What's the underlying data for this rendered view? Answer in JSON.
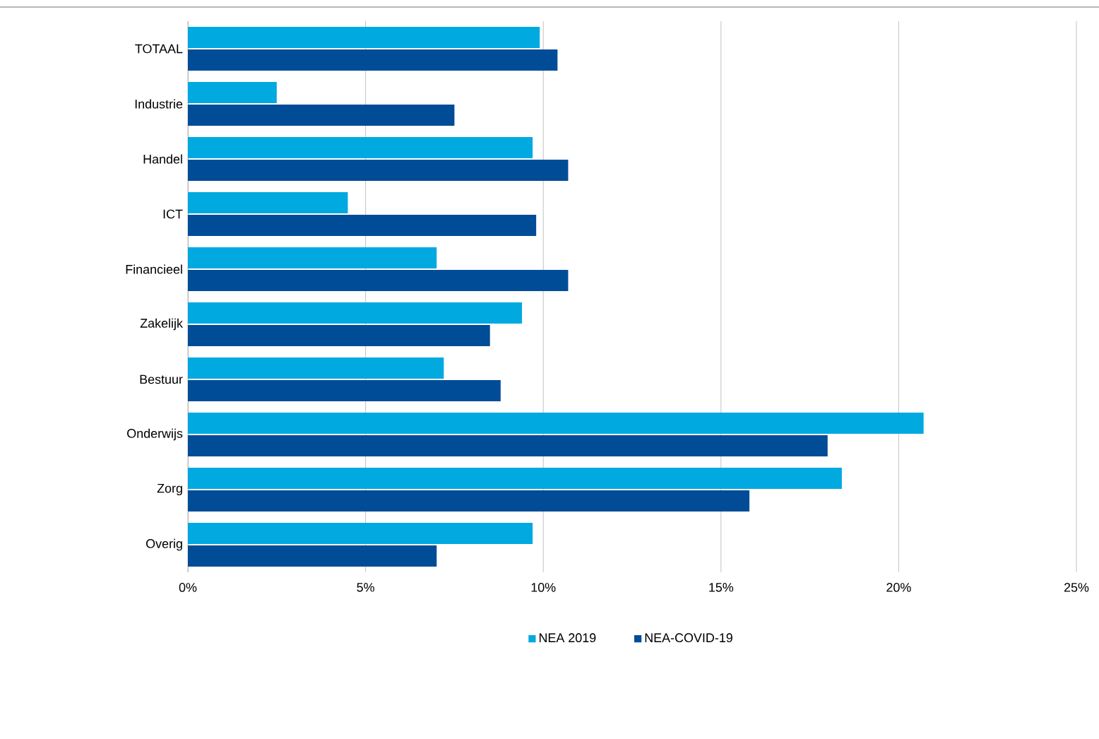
{
  "chart_data": {
    "type": "bar",
    "orientation": "horizontal",
    "categories": [
      "TOTAAL",
      "Industrie",
      "Handel",
      "ICT",
      "Financieel",
      "Zakelijk",
      "Bestuur",
      "Onderwijs",
      "Zorg",
      "Overig"
    ],
    "series": [
      {
        "name": "NEA 2019",
        "color": "#00a9e0",
        "values": [
          9.9,
          2.5,
          9.7,
          4.5,
          7.0,
          9.4,
          7.2,
          20.7,
          18.4,
          9.7
        ]
      },
      {
        "name": "NEA-COVID-19",
        "color": "#004c97",
        "values": [
          10.4,
          7.5,
          10.7,
          9.8,
          10.7,
          8.5,
          8.8,
          18.0,
          15.8,
          7.0
        ]
      }
    ],
    "xlim": [
      0,
      25
    ],
    "xticks": [
      {
        "value": 0,
        "label": "0%"
      },
      {
        "value": 5,
        "label": "5%"
      },
      {
        "value": 10,
        "label": "10%"
      },
      {
        "value": 15,
        "label": "15%"
      },
      {
        "value": 20,
        "label": "20%"
      },
      {
        "value": 25,
        "label": "25%"
      }
    ],
    "grid": "x",
    "legend": "bottom"
  }
}
